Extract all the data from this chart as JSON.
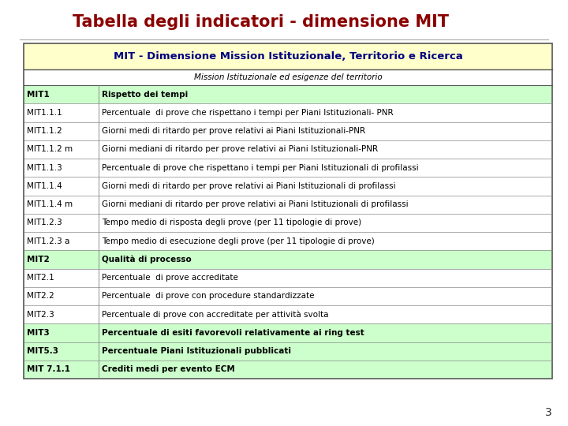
{
  "title": "Tabella degli indicatori - dimensione MIT",
  "title_color": "#8B0000",
  "table_header": "MIT - Dimensione Mission Istituzionale, Territorio e Ricerca",
  "subheader": "Mission Istituzionale ed esigenze del territorio",
  "rows": [
    [
      "MIT1",
      "Rispetto dei tempi",
      "green_header"
    ],
    [
      "MIT1.1.1",
      "Percentuale  di prove che rispettano i tempi per Piani Istituzionali- PNR",
      "white"
    ],
    [
      "MIT1.1.2",
      "Giorni medi di ritardo per prove relativi ai Piani Istituzionali-PNR",
      "white"
    ],
    [
      "MIT1.1.2 m",
      "Giorni mediani di ritardo per prove relativi ai Piani Istituzionali-PNR",
      "white"
    ],
    [
      "MIT1.1.3",
      "Percentuale di prove che rispettano i tempi per Piani Istituzionali di profilassi",
      "white"
    ],
    [
      "MIT1.1.4",
      "Giorni medi di ritardo per prove relativi ai Piani Istituzionali di profilassi",
      "white"
    ],
    [
      "MIT1.1.4 m",
      "Giorni mediani di ritardo per prove relativi ai Piani Istituzionali di profilassi",
      "white"
    ],
    [
      "MIT1.2.3",
      "Tempo medio di risposta degli prove (per 11 tipologie di prove)",
      "white"
    ],
    [
      "MIT1.2.3 a",
      "Tempo medio di esecuzione degli prove (per 11 tipologie di prove)",
      "white"
    ],
    [
      "MIT2",
      "Qualità di processo",
      "green_header"
    ],
    [
      "MIT2.1",
      "Percentuale  di prove accreditate",
      "white"
    ],
    [
      "MIT2.2",
      "Percentuale  di prove con procedure standardizzate",
      "white"
    ],
    [
      "MIT2.3",
      "Percentuale di prove con accreditate per attività svolta",
      "white"
    ],
    [
      "MIT3",
      "Percentuale di esiti favorevoli relativamente ai ring test",
      "green_header"
    ],
    [
      "MIT5.3",
      "Percentuale Piani Istituzionali pubblicati",
      "green_header"
    ],
    [
      "MIT 7.1.1",
      "Crediti medi per evento ECM",
      "green_header"
    ]
  ],
  "background_color": "#ffffff",
  "header_bg": "#ffffcc",
  "green_header_bg": "#ccffcc",
  "white_bg": "#ffffff",
  "header_text_color": "#000080",
  "page_number": "3",
  "fig_width": 7.2,
  "fig_height": 5.4,
  "dpi": 100
}
